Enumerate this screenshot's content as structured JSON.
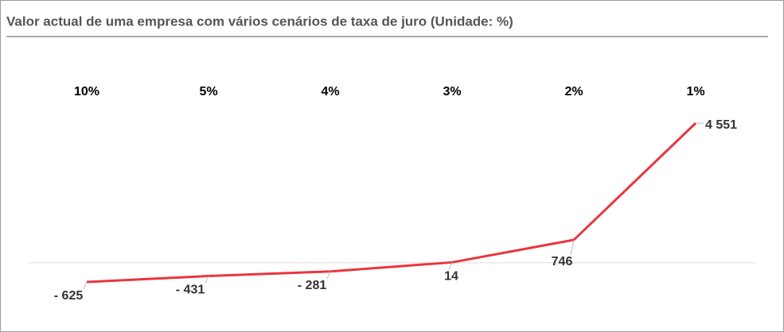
{
  "chart_data": {
    "type": "line",
    "title": "Valor actual de uma empresa com vários cenários de taxa de juro (Unidade: %)",
    "categories": [
      "10%",
      "5%",
      "4%",
      "3%",
      "2%",
      "1%"
    ],
    "series": [
      {
        "color": "#e8363d",
        "values": [
          -625,
          -431,
          -281,
          14,
          746,
          4551
        ],
        "value_labels": [
          "- 625",
          "- 431",
          "- 281",
          "14",
          "746",
          "4 551"
        ]
      }
    ]
  }
}
